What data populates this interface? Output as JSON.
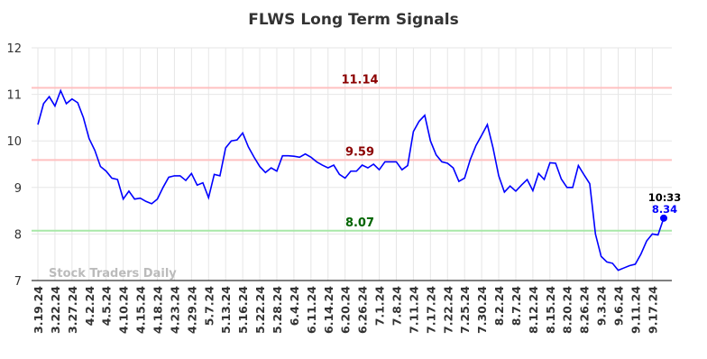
{
  "chart_data": {
    "type": "line",
    "title": "FLWS Long Term Signals",
    "watermark": "Stock Traders Daily",
    "last_time": "10:33",
    "categories": [
      "3.19.24",
      null,
      null,
      "3.22.24",
      null,
      null,
      "3.27.24",
      null,
      null,
      "4.2.24",
      null,
      null,
      "4.5.24",
      null,
      null,
      "4.10.24",
      null,
      null,
      "4.15.24",
      null,
      null,
      "4.18.24",
      null,
      null,
      "4.23.24",
      null,
      null,
      "4.29.24",
      null,
      null,
      "5.7.24",
      null,
      null,
      "5.13.24",
      null,
      null,
      "5.16.24",
      null,
      null,
      "5.22.24",
      null,
      null,
      "5.28.24",
      null,
      null,
      "6.4.24",
      null,
      null,
      "6.11.24",
      null,
      null,
      "6.14.24",
      null,
      null,
      "6.20.24",
      null,
      null,
      "6.26.24",
      null,
      null,
      "7.1.24",
      null,
      null,
      "7.8.24",
      null,
      null,
      "7.11.24",
      null,
      null,
      "7.17.24",
      null,
      null,
      "7.22.24",
      null,
      null,
      "7.25.24",
      null,
      null,
      "7.30.24",
      null,
      null,
      "8.2.24",
      null,
      null,
      "8.7.24",
      null,
      null,
      "8.12.24",
      null,
      null,
      "8.15.24",
      null,
      null,
      "8.20.24",
      null,
      null,
      "8.26.24",
      null,
      null,
      "9.3.24",
      null,
      null,
      "9.6.24",
      null,
      null,
      "9.11.24",
      null,
      null,
      "9.17.24",
      null,
      null
    ],
    "series": [
      {
        "color": "#0000ff",
        "values": [
          10.35,
          10.8,
          10.95,
          10.75,
          11.08,
          10.8,
          10.9,
          10.82,
          10.5,
          10.05,
          9.8,
          9.45,
          9.35,
          9.2,
          9.17,
          8.75,
          8.92,
          8.75,
          8.77,
          8.7,
          8.65,
          8.75,
          9.0,
          9.22,
          9.25,
          9.25,
          9.15,
          9.3,
          9.05,
          9.1,
          8.78,
          9.28,
          9.25,
          9.85,
          10.0,
          10.02,
          10.17,
          9.87,
          9.65,
          9.45,
          9.32,
          9.42,
          9.35,
          9.68,
          9.68,
          9.67,
          9.65,
          9.72,
          9.65,
          9.55,
          9.48,
          9.42,
          9.48,
          9.28,
          9.2,
          9.35,
          9.35,
          9.48,
          9.42,
          9.5,
          9.38,
          9.55,
          9.55,
          9.55,
          9.38,
          9.47,
          10.2,
          10.42,
          10.55,
          10.0,
          9.7,
          9.55,
          9.52,
          9.42,
          9.13,
          9.2,
          9.6,
          9.9,
          10.12,
          10.35,
          9.85,
          9.25,
          8.9,
          9.03,
          8.92,
          9.05,
          9.17,
          8.93,
          9.3,
          9.17,
          9.53,
          9.52,
          9.18,
          9.0,
          9.0,
          9.47,
          9.27,
          9.08,
          8.0,
          7.52,
          7.4,
          7.37,
          7.22,
          7.27,
          7.32,
          7.35,
          7.57,
          7.85,
          8.0,
          7.98,
          8.34
        ]
      }
    ],
    "hlines": [
      {
        "value": 11.14,
        "line_color": "#ffc0c0",
        "label_color": "#8b0000"
      },
      {
        "value": 9.59,
        "line_color": "#ffc0c0",
        "label_color": "#8b0000"
      },
      {
        "value": 8.07,
        "line_color": "#a8e8a8",
        "label_color": "#006400"
      }
    ],
    "ylim": [
      7,
      12
    ],
    "yticks": [
      7,
      8,
      9,
      10,
      11,
      12
    ],
    "grid": true
  }
}
